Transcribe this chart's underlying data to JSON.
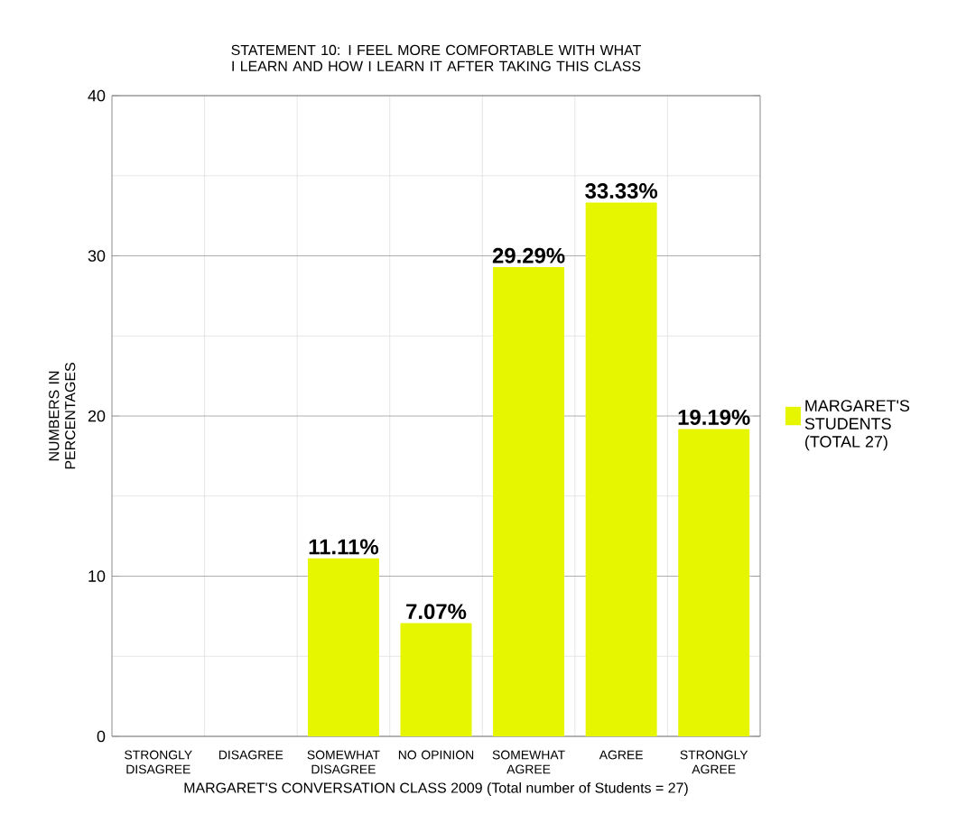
{
  "chart_data": {
    "type": "bar",
    "title": "STATEMENT 10: I FEEL MORE COMFORTABLE WITH WHAT I LEARN AND HOW I LEARN IT AFTER TAKING THIS CLASS",
    "xlabel": "MARGARET'S CONVERSATION CLASS 2009 (Total number of Students = 27)",
    "ylabel": "NUMBERS IN PERCENTAGES",
    "categories": [
      "STRONGLY DISAGREE",
      "DISAGREE",
      "SOMEWHAT DISAGREE",
      "NO OPINION",
      "SOMEWHAT AGREE",
      "AGREE",
      "STRONGLY AGREE"
    ],
    "series": [
      {
        "name": "MARGARET'S STUDENTS (TOTAL 27)",
        "color": "#e6f500",
        "values": [
          0,
          0,
          11.11,
          7.07,
          29.29,
          33.33,
          19.19
        ],
        "value_labels": [
          null,
          null,
          "11.11%",
          "7.07%",
          "29.29%",
          "33.33%",
          "19.19%"
        ]
      }
    ],
    "ylim": [
      0,
      40
    ],
    "yticks": [
      0,
      10,
      20,
      30,
      40
    ],
    "grid": true,
    "legend": "right"
  }
}
